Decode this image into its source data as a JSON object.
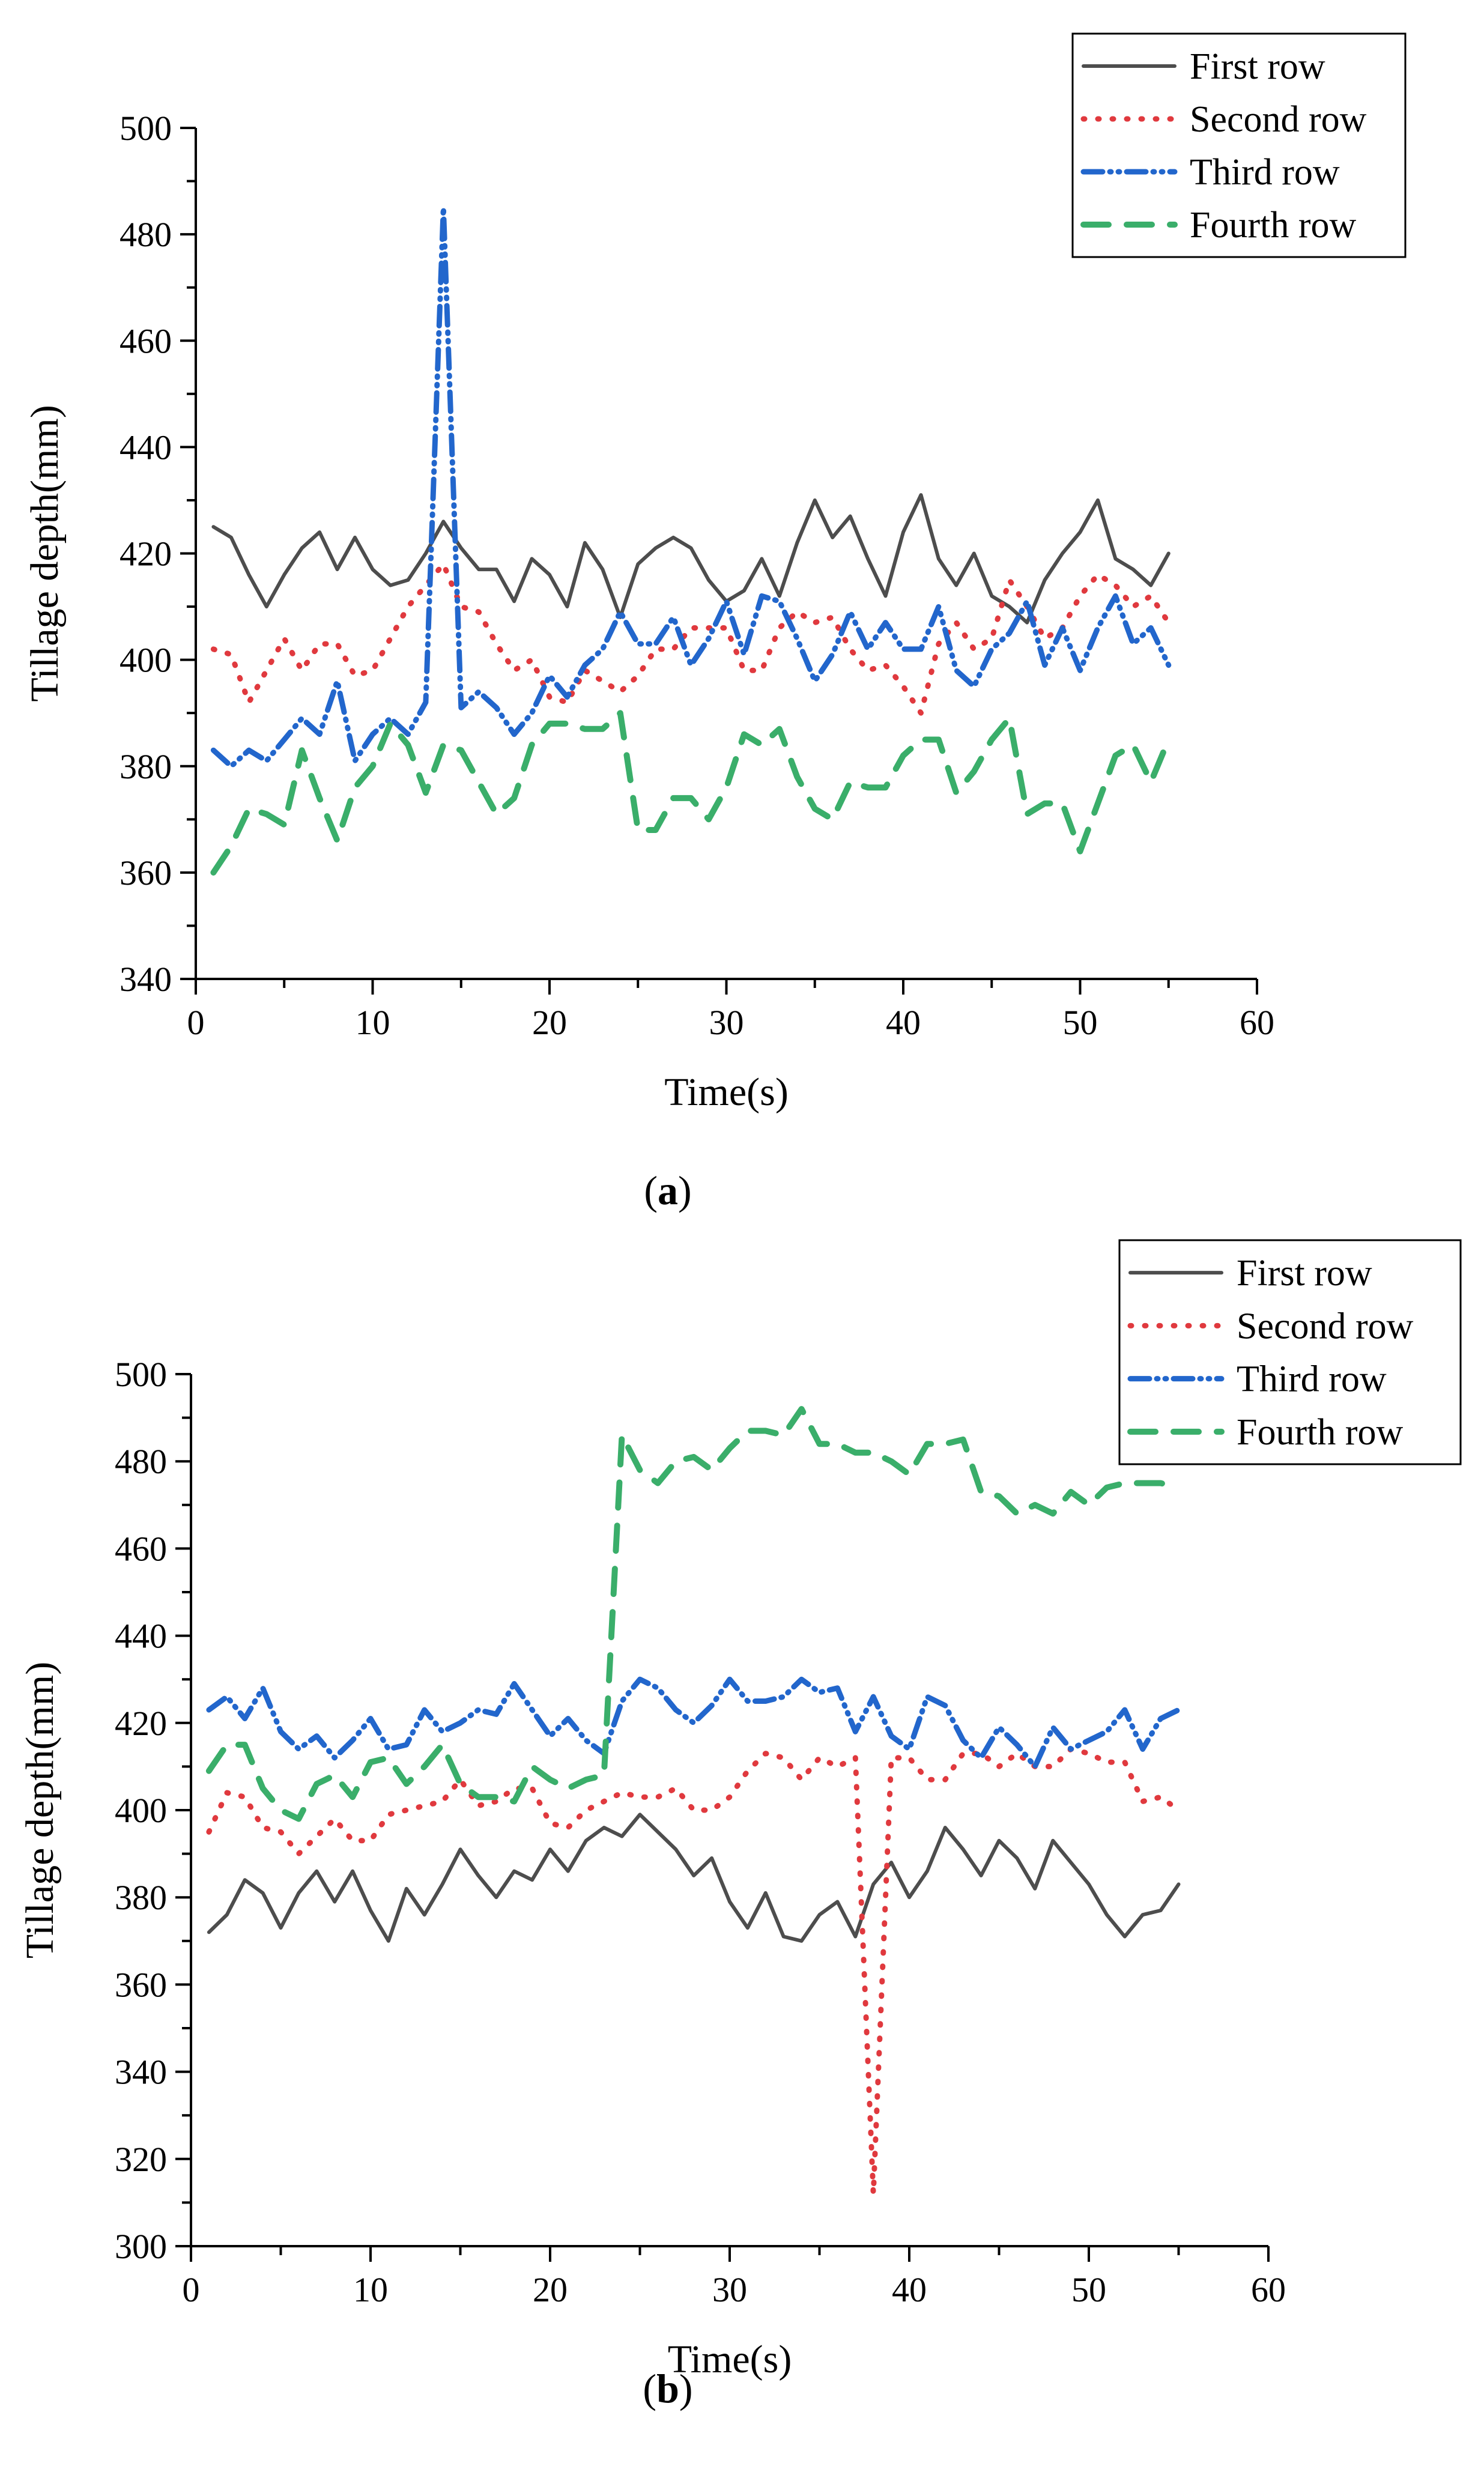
{
  "colors": {
    "first": "#4d4d4d",
    "second": "#e0393e",
    "third": "#2266cc",
    "fourth": "#3aae6a",
    "axis": "#000000"
  },
  "chart_data": [
    {
      "id": "a",
      "type": "line",
      "caption": "a",
      "xlabel": "Time(s)",
      "ylabel": "Tillage depth(mm)",
      "xlim": [
        0,
        60
      ],
      "ylim": [
        340,
        500
      ],
      "xticks": [
        0,
        10,
        20,
        30,
        40,
        50,
        60
      ],
      "yticks": [
        340,
        360,
        380,
        400,
        420,
        440,
        460,
        480,
        500
      ],
      "x": [
        1,
        2,
        3,
        4,
        5,
        6,
        7,
        8,
        9,
        10,
        11,
        12,
        13,
        14,
        15,
        16,
        17,
        18,
        19,
        20,
        21,
        22,
        23,
        24,
        25,
        26,
        27,
        28,
        29,
        30,
        31,
        32,
        33,
        34,
        35,
        36,
        37,
        38,
        39,
        40,
        41,
        42,
        43,
        44,
        45,
        46,
        47,
        48,
        49,
        50,
        51,
        52,
        53,
        54,
        55
      ],
      "legend_position": "top-right",
      "series": [
        {
          "name": "First row",
          "style": "solid",
          "color_key": "first",
          "values": [
            425,
            423,
            416,
            410,
            416,
            421,
            424,
            417,
            423,
            417,
            414,
            415,
            420,
            426,
            421,
            417,
            417,
            411,
            419,
            416,
            410,
            422,
            417,
            408,
            418,
            421,
            423,
            421,
            415,
            411,
            413,
            419,
            412,
            422,
            430,
            423,
            427,
            419,
            412,
            424,
            431,
            419,
            414,
            420,
            412,
            410,
            407,
            415,
            420,
            424,
            430,
            419,
            417,
            414,
            420
          ]
        },
        {
          "name": "Second row",
          "style": "dotted",
          "color_key": "second",
          "values": [
            402,
            401,
            392,
            398,
            404,
            398,
            403,
            403,
            397,
            398,
            404,
            410,
            414,
            418,
            410,
            409,
            403,
            398,
            400,
            393,
            392,
            398,
            396,
            394,
            397,
            402,
            402,
            406,
            406,
            406,
            398,
            398,
            406,
            409,
            407,
            408,
            402,
            398,
            399,
            395,
            390,
            403,
            407,
            402,
            404,
            415,
            410,
            404,
            406,
            412,
            416,
            414,
            410,
            412,
            407
          ]
        },
        {
          "name": "Third row",
          "style": "dashdotdot",
          "color_key": "third",
          "values": [
            383,
            380,
            383,
            381,
            385,
            389,
            386,
            396,
            381,
            386,
            389,
            386,
            392,
            485,
            391,
            394,
            391,
            386,
            390,
            397,
            393,
            399,
            402,
            409,
            403,
            403,
            408,
            399,
            404,
            411,
            401,
            412,
            411,
            404,
            396,
            401,
            409,
            402,
            407,
            402,
            402,
            410,
            398,
            395,
            402,
            405,
            411,
            399,
            406,
            398,
            406,
            412,
            403,
            406,
            399
          ]
        },
        {
          "name": "Fourth row",
          "style": "dashed",
          "color_key": "fourth",
          "values": [
            360,
            365,
            372,
            371,
            369,
            383,
            374,
            366,
            376,
            380,
            388,
            384,
            375,
            384,
            383,
            377,
            371,
            374,
            384,
            388,
            388,
            387,
            387,
            390,
            368,
            368,
            374,
            374,
            370,
            376,
            386,
            384,
            387,
            378,
            372,
            370,
            377,
            376,
            376,
            382,
            385,
            385,
            375,
            379,
            385,
            389,
            371,
            373,
            373,
            364,
            373,
            382,
            384,
            377,
            385
          ]
        }
      ]
    },
    {
      "id": "b",
      "type": "line",
      "caption": "b",
      "xlabel": "Time(s)",
      "ylabel": "Tillage depth(mm)",
      "xlim": [
        0,
        60
      ],
      "ylim": [
        300,
        500
      ],
      "xticks": [
        0,
        10,
        20,
        30,
        40,
        50,
        60
      ],
      "yticks": [
        300,
        320,
        340,
        360,
        380,
        400,
        420,
        440,
        460,
        480,
        500
      ],
      "x": [
        1,
        2,
        3,
        4,
        5,
        6,
        7,
        8,
        9,
        10,
        11,
        12,
        13,
        14,
        15,
        16,
        17,
        18,
        19,
        20,
        21,
        22,
        23,
        24,
        25,
        26,
        27,
        28,
        29,
        30,
        31,
        32,
        33,
        34,
        35,
        36,
        37,
        38,
        39,
        40,
        41,
        42,
        43,
        44,
        45,
        46,
        47,
        48,
        49,
        50,
        51,
        52,
        53,
        54,
        55
      ],
      "legend_position": "top-right",
      "series": [
        {
          "name": "First row",
          "style": "solid",
          "color_key": "first",
          "values": [
            372,
            376,
            384,
            381,
            373,
            381,
            386,
            379,
            386,
            377,
            370,
            382,
            376,
            383,
            391,
            385,
            380,
            386,
            384,
            391,
            386,
            393,
            396,
            394,
            399,
            395,
            391,
            385,
            389,
            379,
            373,
            381,
            371,
            370,
            376,
            379,
            371,
            383,
            388,
            380,
            386,
            396,
            391,
            385,
            393,
            389,
            382,
            393,
            388,
            383,
            376,
            371,
            376,
            377,
            383
          ]
        },
        {
          "name": "Second row",
          "style": "dotted",
          "color_key": "second",
          "values": [
            395,
            404,
            403,
            396,
            395,
            390,
            394,
            398,
            393,
            393,
            399,
            400,
            401,
            402,
            407,
            401,
            402,
            405,
            405,
            397,
            396,
            400,
            402,
            404,
            403,
            403,
            405,
            400,
            400,
            403,
            409,
            413,
            412,
            407,
            412,
            410,
            412,
            312,
            412,
            412,
            407,
            407,
            413,
            413,
            410,
            413,
            410,
            410,
            414,
            413,
            411,
            411,
            402,
            403,
            400
          ]
        },
        {
          "name": "Third row",
          "style": "dashdotdot",
          "color_key": "third",
          "values": [
            423,
            426,
            421,
            428,
            418,
            414,
            417,
            412,
            416,
            421,
            414,
            415,
            423,
            418,
            420,
            423,
            422,
            429,
            423,
            417,
            421,
            416,
            413,
            425,
            430,
            428,
            423,
            420,
            424,
            430,
            425,
            425,
            426,
            430,
            427,
            428,
            418,
            426,
            417,
            414,
            426,
            424,
            416,
            412,
            419,
            415,
            410,
            419,
            414,
            416,
            418,
            423,
            414,
            421,
            423
          ]
        },
        {
          "name": "Fourth row",
          "style": "dashed",
          "color_key": "fourth",
          "values": [
            409,
            415,
            415,
            405,
            400,
            398,
            406,
            408,
            403,
            411,
            412,
            406,
            410,
            415,
            406,
            403,
            403,
            402,
            410,
            407,
            405,
            407,
            408,
            486,
            478,
            475,
            480,
            481,
            478,
            483,
            487,
            487,
            486,
            492,
            484,
            484,
            482,
            482,
            480,
            477,
            484,
            484,
            485,
            473,
            472,
            468,
            470,
            468,
            473,
            470,
            474,
            475,
            475,
            475,
            474
          ]
        }
      ]
    }
  ]
}
